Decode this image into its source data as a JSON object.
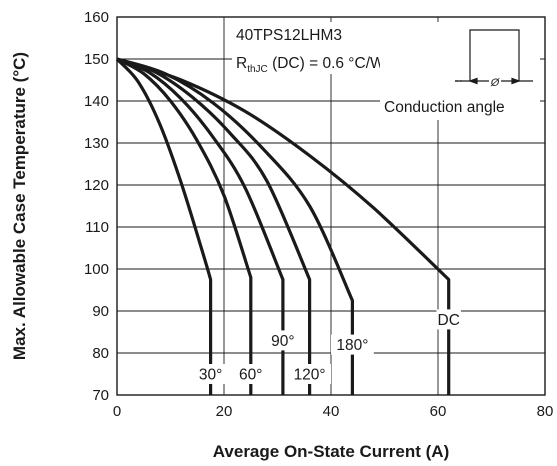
{
  "chart_data": {
    "type": "line",
    "title": "40TPS12LHM3",
    "annotation": {
      "main": "R",
      "sub": "thJC",
      "rest": " (DC) = 0.6 °C/W"
    },
    "xlabel": "Average On-State Current (A)",
    "ylabel": "Max. Allowable Case Temperature (°C)",
    "xlim": [
      0,
      80
    ],
    "ylim": [
      70,
      160
    ],
    "xticks": [
      0,
      20,
      40,
      60,
      80
    ],
    "yticks": [
      70,
      80,
      90,
      100,
      110,
      120,
      130,
      140,
      150,
      160
    ],
    "grid": true,
    "inset": {
      "angle_symbol": "Ø",
      "caption": "Conduction angle"
    },
    "series": [
      {
        "name": "30°",
        "x": [
          0,
          4,
          8,
          12,
          16,
          17.5,
          17.5
        ],
        "y": [
          150,
          144.5,
          134.5,
          120.5,
          104,
          97.5,
          70
        ]
      },
      {
        "name": "60°",
        "x": [
          0,
          5,
          10,
          15,
          20,
          25,
          25,
          25
        ],
        "y": [
          150,
          146.5,
          140,
          130.5,
          117.5,
          98,
          97.5,
          70
        ]
      },
      {
        "name": "90°",
        "x": [
          0,
          6,
          12,
          18,
          24,
          31,
          31
        ],
        "y": [
          150,
          146.8,
          140.5,
          131.3,
          119.2,
          97.5,
          70
        ]
      },
      {
        "name": "120°",
        "x": [
          0,
          7,
          14,
          21,
          28,
          36,
          36
        ],
        "y": [
          150,
          147,
          141,
          132.5,
          121,
          97.5,
          70
        ]
      },
      {
        "name": "180°",
        "x": [
          0,
          9,
          18,
          27,
          36,
          44,
          44
        ],
        "y": [
          150,
          146.5,
          139.5,
          129,
          115,
          92.5,
          70
        ]
      },
      {
        "name": "DC",
        "x": [
          0,
          12,
          24,
          36,
          48,
          62,
          62
        ],
        "y": [
          150,
          145,
          137.5,
          127,
          114.5,
          97.5,
          70
        ]
      }
    ],
    "series_labels": [
      {
        "text": "30°",
        "x": 17.5,
        "y": 75
      },
      {
        "text": "60°",
        "x": 25,
        "y": 75
      },
      {
        "text": "90°",
        "x": 31,
        "y": 83
      },
      {
        "text": "120°",
        "x": 36,
        "y": 75
      },
      {
        "text": "180°",
        "x": 44,
        "y": 82
      },
      {
        "text": "DC",
        "x": 62,
        "y": 88
      }
    ]
  }
}
